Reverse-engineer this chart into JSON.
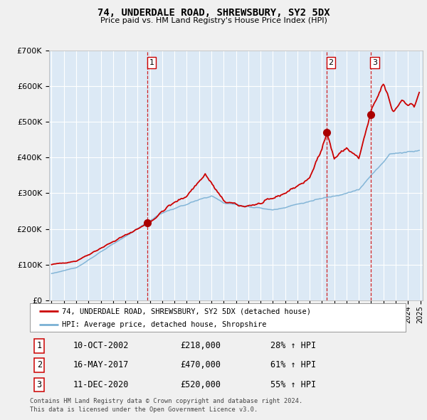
{
  "title": "74, UNDERDALE ROAD, SHREWSBURY, SY2 5DX",
  "subtitle": "Price paid vs. HM Land Registry's House Price Index (HPI)",
  "background_color": "#dce9f5",
  "fig_bg_color": "#f0f0f0",
  "grid_color": "#ffffff",
  "red_line_color": "#cc0000",
  "blue_line_color": "#7ab0d4",
  "vline_color": "#cc0000",
  "sale_dates_float": [
    2002.78,
    2017.37,
    2020.95
  ],
  "sale_prices": [
    218000,
    470000,
    520000
  ],
  "sale_labels": [
    "1",
    "2",
    "3"
  ],
  "sale_info": [
    {
      "num": "1",
      "date": "10-OCT-2002",
      "price": "£218,000",
      "hpi": "28% ↑ HPI"
    },
    {
      "num": "2",
      "date": "16-MAY-2017",
      "price": "£470,000",
      "hpi": "61% ↑ HPI"
    },
    {
      "num": "3",
      "date": "11-DEC-2020",
      "price": "£520,000",
      "hpi": "55% ↑ HPI"
    }
  ],
  "legend_line1": "74, UNDERDALE ROAD, SHREWSBURY, SY2 5DX (detached house)",
  "legend_line2": "HPI: Average price, detached house, Shropshire",
  "footer_line1": "Contains HM Land Registry data © Crown copyright and database right 2024.",
  "footer_line2": "This data is licensed under the Open Government Licence v3.0.",
  "ylim": [
    0,
    700000
  ],
  "yticks": [
    0,
    100000,
    200000,
    300000,
    400000,
    500000,
    600000,
    700000
  ],
  "ytick_labels": [
    "£0",
    "£100K",
    "£200K",
    "£300K",
    "£400K",
    "£500K",
    "£600K",
    "£700K"
  ],
  "xstart_year": 1995,
  "xend_year": 2025
}
